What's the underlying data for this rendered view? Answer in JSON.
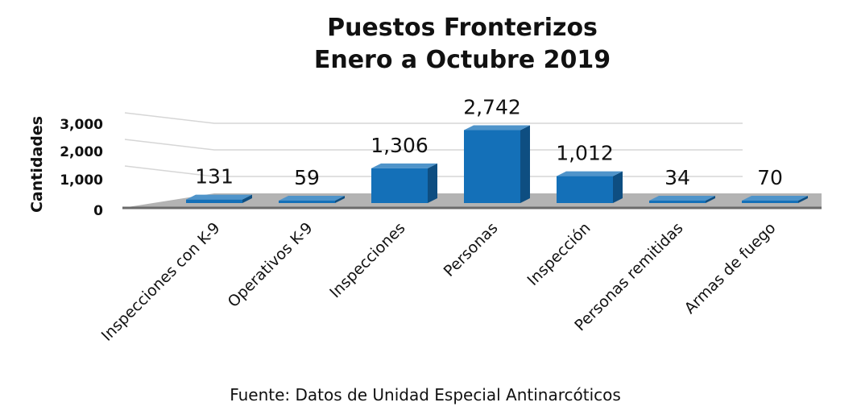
{
  "chart_data": {
    "type": "bar",
    "title_lines": [
      "Puestos Fronterizos",
      "Enero a Octubre 2019"
    ],
    "ylabel": "Cantidades",
    "xlabel": "",
    "ylim": [
      0,
      3000
    ],
    "yticks": [
      "3,000",
      "2,000",
      "1,000",
      "0"
    ],
    "categories": [
      "Inspecciones con K-9",
      "Operativos K-9",
      "Inspecciones",
      "Personas",
      "Inspección",
      "Personas remitidas",
      "Armas de fuego"
    ],
    "values": [
      131,
      59,
      1306,
      2742,
      1012,
      34,
      70
    ],
    "data_labels": [
      "131",
      "59",
      "1,306",
      "2,742",
      "1,012",
      "34",
      "70"
    ],
    "grid": true,
    "legend": "none",
    "bar_color": "#1470b8",
    "floor_color": "#b3b3b3"
  },
  "source": "Fuente: Datos de Unidad Especial Antinarcóticos"
}
